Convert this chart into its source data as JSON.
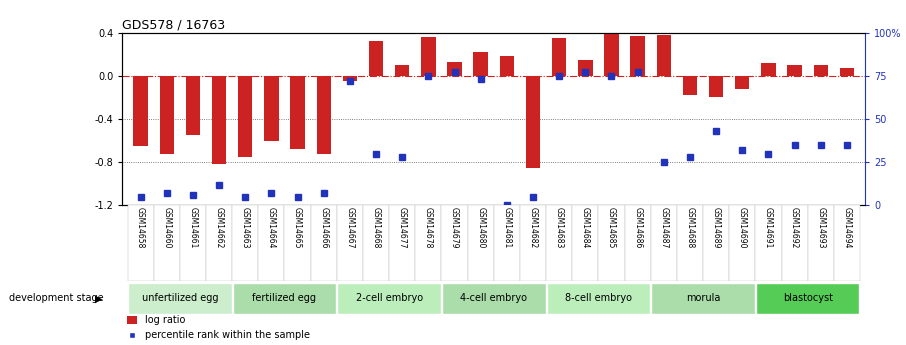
{
  "title": "GDS578 / 16763",
  "samples": [
    "GSM14658",
    "GSM14660",
    "GSM14661",
    "GSM14662",
    "GSM14663",
    "GSM14664",
    "GSM14665",
    "GSM14666",
    "GSM14667",
    "GSM14668",
    "GSM14677",
    "GSM14678",
    "GSM14679",
    "GSM14680",
    "GSM14681",
    "GSM14682",
    "GSM14683",
    "GSM14684",
    "GSM14685",
    "GSM14686",
    "GSM14687",
    "GSM14688",
    "GSM14689",
    "GSM14690",
    "GSM14691",
    "GSM14692",
    "GSM14693",
    "GSM14694"
  ],
  "log_ratio": [
    -0.65,
    -0.72,
    -0.55,
    -0.82,
    -0.75,
    -0.6,
    -0.68,
    -0.72,
    -0.05,
    0.32,
    0.1,
    0.36,
    0.13,
    0.22,
    0.18,
    -0.85,
    0.35,
    0.15,
    0.4,
    0.37,
    0.38,
    -0.18,
    -0.2,
    -0.12,
    0.12,
    0.1,
    0.1,
    0.07
  ],
  "percentile_rank": [
    5,
    7,
    6,
    12,
    5,
    7,
    5,
    7,
    72,
    30,
    28,
    75,
    77,
    73,
    0,
    5,
    75,
    77,
    75,
    77,
    25,
    28,
    43,
    32,
    30,
    35,
    35,
    35
  ],
  "stages": [
    {
      "label": "unfertilized egg",
      "start": 0,
      "end": 4,
      "color": "#cceecc"
    },
    {
      "label": "fertilized egg",
      "start": 4,
      "end": 8,
      "color": "#aaddaa"
    },
    {
      "label": "2-cell embryo",
      "start": 8,
      "end": 12,
      "color": "#bbeebb"
    },
    {
      "label": "4-cell embryo",
      "start": 12,
      "end": 16,
      "color": "#aaddaa"
    },
    {
      "label": "8-cell embryo",
      "start": 16,
      "end": 20,
      "color": "#bbeebb"
    },
    {
      "label": "morula",
      "start": 20,
      "end": 24,
      "color": "#aaddaa"
    },
    {
      "label": "blastocyst",
      "start": 24,
      "end": 28,
      "color": "#55cc55"
    }
  ],
  "bar_color": "#cc2222",
  "dot_color": "#2233bb",
  "ylim_left": [
    -1.2,
    0.4
  ],
  "ylim_right": [
    0,
    100
  ],
  "background_color": "#ffffff",
  "hline_color": "#cc2222",
  "dotline_color": "#555555",
  "legend_log_ratio": "log ratio",
  "legend_percentile": "percentile rank within the sample",
  "development_stage_label": "development stage",
  "left_ticks": [
    0.4,
    0.0,
    -0.4,
    -0.8,
    -1.2
  ],
  "right_ticks": [
    100,
    75,
    50,
    25,
    0
  ],
  "gray_separator_color": "#aaaaaa",
  "stage_separator_color": "#888888"
}
